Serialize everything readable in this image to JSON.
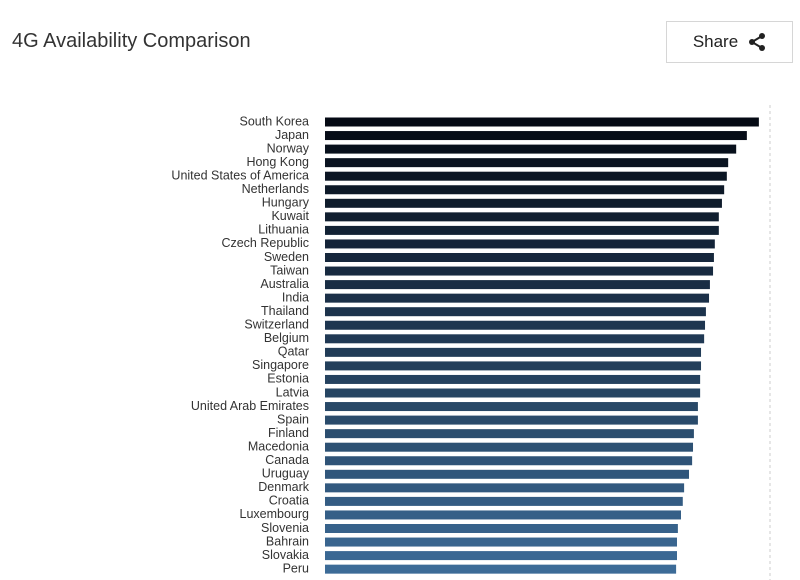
{
  "header": {
    "title": "4G Availability Comparison",
    "share": "Share"
  },
  "chart_data": {
    "type": "bar",
    "orientation": "horizontal",
    "categories": [
      "South Korea",
      "Japan",
      "Norway",
      "Hong Kong",
      "United States of America",
      "Netherlands",
      "Hungary",
      "Kuwait",
      "Lithuania",
      "Czech Republic",
      "Sweden",
      "Taiwan",
      "Australia",
      "India",
      "Thailand",
      "Switzerland",
      "Belgium",
      "Qatar",
      "Singapore",
      "Estonia",
      "Latvia",
      "United Arab Emirates",
      "Spain",
      "Finland",
      "Macedonia",
      "Canada",
      "Uruguay",
      "Denmark",
      "Croatia",
      "Luxembourg",
      "Slovenia",
      "Bahrain",
      "Slovakia",
      "Peru"
    ],
    "values": [
      97.5,
      94.8,
      92.4,
      90.6,
      90.3,
      89.7,
      89.2,
      88.5,
      88.5,
      87.6,
      87.4,
      87.2,
      86.5,
      86.3,
      85.6,
      85.4,
      85.2,
      84.5,
      84.5,
      84.3,
      84.3,
      83.8,
      83.8,
      82.9,
      82.7,
      82.5,
      81.8,
      80.7,
      80.4,
      80.0,
      79.3,
      79.1,
      79.1,
      78.9
    ],
    "colors": [
      "#050a14",
      "#3c6b97"
    ],
    "xlim": [
      0,
      100
    ],
    "grid": true
  }
}
